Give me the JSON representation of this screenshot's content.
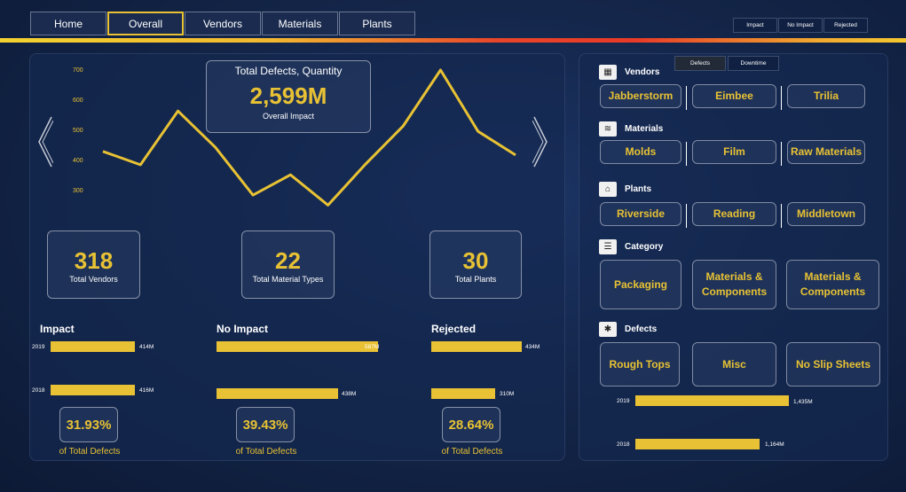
{
  "nav": {
    "tabs": [
      {
        "label": "Home"
      },
      {
        "label": "Overall"
      },
      {
        "label": "Vendors"
      },
      {
        "label": "Materials"
      },
      {
        "label": "Plants"
      }
    ],
    "active": "Overall"
  },
  "filters": [
    "Impact",
    "No Impact",
    "Rejected"
  ],
  "chart": {
    "title": "Total Defects, Quantity",
    "big_value": "2,599M",
    "big_label": "Overall Impact",
    "yticks": [
      "700",
      "600",
      "500",
      "400",
      "300"
    ]
  },
  "chart_data": {
    "type": "line",
    "title": "Total Defects, Quantity",
    "ylim": [
      300,
      700
    ],
    "series": [
      {
        "values": [
          432,
          388,
          565,
          445,
          288,
          355,
          255,
          390,
          515,
          700,
          498,
          420
        ]
      }
    ]
  },
  "kpis": [
    {
      "value": "318",
      "label": "Total Vendors"
    },
    {
      "value": "22",
      "label": "Total Material Types"
    },
    {
      "value": "30",
      "label": "Total Plants"
    }
  ],
  "impact": {
    "title": "Impact",
    "rows": [
      {
        "year": "2019",
        "value": "414M",
        "fraction": 0.72
      },
      {
        "year": "2018",
        "value": "416M",
        "fraction": 0.72
      }
    ],
    "pct": "31.93%",
    "pct_label": "of Total Defects"
  },
  "no_impact": {
    "title": "No Impact",
    "rows": [
      {
        "value": "587M",
        "fraction": 1.0
      },
      {
        "value": "438M",
        "fraction": 0.75
      }
    ],
    "pct": "39.43%",
    "pct_label": "of Total Defects"
  },
  "rejected": {
    "title": "Rejected",
    "rows": [
      {
        "value": "434M",
        "fraction": 1.0
      },
      {
        "value": "310M",
        "fraction": 0.71
      }
    ],
    "pct": "28.64%",
    "pct_label": "of Total Defects"
  },
  "right": {
    "toggles": [
      "Defects",
      "Downtime"
    ],
    "vendors": {
      "title": "Vendors",
      "items": [
        "Jabberstorm",
        "Eimbee",
        "Trilia"
      ]
    },
    "materials": {
      "title": "Materials",
      "items": [
        "Molds",
        "Film",
        "Raw Materials"
      ]
    },
    "plants": {
      "title": "Plants",
      "items": [
        "Riverside",
        "Reading",
        "Middletown"
      ]
    },
    "category": {
      "title": "Category",
      "items": [
        "Packaging",
        "Materials & Components",
        "Materials & Components"
      ]
    },
    "defects": {
      "title": "Defects",
      "items": [
        "Rough Tops",
        "Misc",
        "No Slip Sheets"
      ]
    },
    "totals": [
      {
        "year": "2019",
        "value": "1,435M",
        "fraction": 1.0
      },
      {
        "year": "2018",
        "value": "1,164M",
        "fraction": 0.81
      }
    ]
  }
}
